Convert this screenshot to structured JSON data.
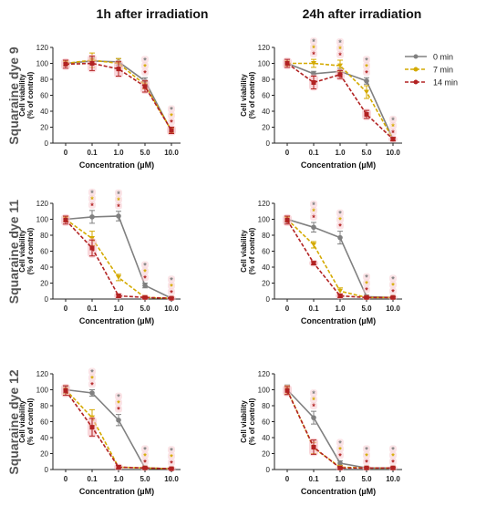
{
  "column_titles": [
    "1h after irradiation",
    "24h after irradiation"
  ],
  "row_titles": [
    "Squaraine dye 9",
    "Squaraine dye 11",
    "Squaraine dye 12"
  ],
  "xlabel": "Concentration (µM)",
  "ylabel_line1": "Cell viability",
  "ylabel_line2": "(% of control)",
  "legend": [
    {
      "name": "0 min",
      "color": "#808080",
      "dash": "solid"
    },
    {
      "name": "7 min",
      "color": "#d4aa00",
      "dash": "dashed"
    },
    {
      "name": "14 min",
      "color": "#b22222",
      "dash": "dashed"
    }
  ],
  "chart_data": [
    {
      "type": "line",
      "title": "Squaraine dye 9 — 1h after irradiation",
      "categories": [
        "0",
        "0.1",
        "1.0",
        "5.0",
        "10.0"
      ],
      "ylim": [
        0,
        120
      ],
      "yticks": [
        0,
        20,
        40,
        60,
        80,
        100,
        120
      ],
      "series": [
        {
          "name": "0 min",
          "values": [
            100,
            103,
            102,
            78,
            15
          ],
          "errors": [
            3,
            4,
            4,
            4,
            3
          ]
        },
        {
          "name": "7 min",
          "values": [
            100,
            104,
            100,
            73,
            16
          ],
          "errors": [
            3,
            9,
            6,
            5,
            3
          ]
        },
        {
          "name": "14 min",
          "values": [
            99,
            100,
            93,
            71,
            16
          ],
          "errors": [
            5,
            9,
            9,
            7,
            4
          ]
        }
      ],
      "significance": [
        [],
        [],
        [],
        [
          0,
          1,
          2
        ],
        [
          0,
          1,
          2
        ]
      ]
    },
    {
      "type": "line",
      "title": "Squaraine dye 9 — 24h after irradiation",
      "categories": [
        "0",
        "0.1",
        "1.0",
        "5.0",
        "10.0"
      ],
      "ylim": [
        0,
        120
      ],
      "yticks": [
        0,
        20,
        40,
        60,
        80,
        100,
        120
      ],
      "series": [
        {
          "name": "0 min",
          "values": [
            100,
            87,
            90,
            78,
            5
          ],
          "errors": [
            3,
            3,
            4,
            4,
            2
          ]
        },
        {
          "name": "7 min",
          "values": [
            100,
            100,
            97,
            64,
            5
          ],
          "errors": [
            3,
            5,
            7,
            8,
            2
          ]
        },
        {
          "name": "14 min",
          "values": [
            100,
            76,
            86,
            36,
            5
          ],
          "errors": [
            5,
            8,
            5,
            5,
            2
          ]
        }
      ],
      "significance": [
        [],
        [
          0,
          1,
          2
        ],
        [
          0,
          1,
          2
        ],
        [
          0,
          1,
          2
        ],
        [
          0,
          1,
          2
        ]
      ]
    },
    {
      "type": "line",
      "title": "Squaraine dye 11 — 1h after irradiation",
      "categories": [
        "0",
        "0.1",
        "1.0",
        "5.0",
        "10.0"
      ],
      "ylim": [
        0,
        120
      ],
      "yticks": [
        0,
        20,
        40,
        60,
        80,
        100,
        120
      ],
      "series": [
        {
          "name": "0 min",
          "values": [
            100,
            103,
            104,
            17,
            1
          ],
          "errors": [
            3,
            8,
            6,
            3,
            1
          ]
        },
        {
          "name": "7 min",
          "values": [
            100,
            76,
            27,
            2,
            1
          ],
          "errors": [
            3,
            9,
            4,
            1,
            1
          ]
        },
        {
          "name": "14 min",
          "values": [
            99,
            64,
            4,
            2,
            1
          ],
          "errors": [
            5,
            10,
            2,
            1,
            1
          ]
        }
      ],
      "significance": [
        [],
        [
          0,
          1,
          2
        ],
        [
          0,
          1,
          2
        ],
        [
          0,
          1,
          2
        ],
        [
          0,
          1,
          2
        ]
      ]
    },
    {
      "type": "line",
      "title": "Squaraine dye 11 — 24h after irradiation",
      "categories": [
        "0",
        "0.1",
        "1.0",
        "5.0",
        "10.0"
      ],
      "ylim": [
        0,
        120
      ],
      "yticks": [
        0,
        20,
        40,
        60,
        80,
        100,
        120
      ],
      "series": [
        {
          "name": "0 min",
          "values": [
            100,
            90,
            77,
            3,
            2
          ],
          "errors": [
            4,
            6,
            8,
            2,
            1
          ]
        },
        {
          "name": "7 min",
          "values": [
            100,
            68,
            10,
            2,
            2
          ],
          "errors": [
            3,
            4,
            4,
            1,
            1
          ]
        },
        {
          "name": "14 min",
          "values": [
            99,
            45,
            4,
            2,
            2
          ],
          "errors": [
            5,
            2,
            2,
            1,
            1
          ]
        }
      ],
      "significance": [
        [],
        [
          0,
          1,
          2
        ],
        [
          0,
          1,
          2
        ],
        [
          0,
          1,
          2
        ],
        [
          0,
          1,
          2
        ]
      ]
    },
    {
      "type": "line",
      "title": "Squaraine dye 12 — 1h after irradiation",
      "categories": [
        "0",
        "0.1",
        "1.0",
        "5.0",
        "10.0"
      ],
      "ylim": [
        0,
        120
      ],
      "yticks": [
        0,
        20,
        40,
        60,
        80,
        100,
        120
      ],
      "series": [
        {
          "name": "0 min",
          "values": [
            100,
            96,
            62,
            2,
            1
          ],
          "errors": [
            4,
            4,
            7,
            1,
            1
          ]
        },
        {
          "name": "7 min",
          "values": [
            100,
            65,
            3,
            2,
            1
          ],
          "errors": [
            5,
            10,
            2,
            1,
            1
          ]
        },
        {
          "name": "14 min",
          "values": [
            99,
            53,
            3,
            2,
            1
          ],
          "errors": [
            6,
            11,
            2,
            1,
            1
          ]
        }
      ],
      "significance": [
        [],
        [
          0,
          1,
          2
        ],
        [
          0,
          1,
          2
        ],
        [
          0,
          1,
          2
        ],
        [
          0,
          1,
          2
        ]
      ]
    },
    {
      "type": "line",
      "title": "Squaraine dye 12 — 24h after irradiation",
      "categories": [
        "0",
        "0.1",
        "1.0",
        "5.0",
        "10.0"
      ],
      "ylim": [
        0,
        120
      ],
      "yticks": [
        0,
        20,
        40,
        60,
        80,
        100,
        120
      ],
      "series": [
        {
          "name": "0 min",
          "values": [
            100,
            65,
            8,
            2,
            2
          ],
          "errors": [
            6,
            8,
            3,
            1,
            1
          ]
        },
        {
          "name": "7 min",
          "values": [
            100,
            27,
            3,
            2,
            2
          ],
          "errors": [
            5,
            7,
            2,
            1,
            1
          ]
        },
        {
          "name": "14 min",
          "values": [
            99,
            28,
            2,
            2,
            2
          ],
          "errors": [
            5,
            9,
            1,
            1,
            1
          ]
        }
      ],
      "significance": [
        [],
        [
          0,
          1,
          2
        ],
        [
          0,
          1,
          2
        ],
        [
          0,
          1,
          2
        ],
        [
          0,
          1,
          2
        ]
      ]
    }
  ]
}
